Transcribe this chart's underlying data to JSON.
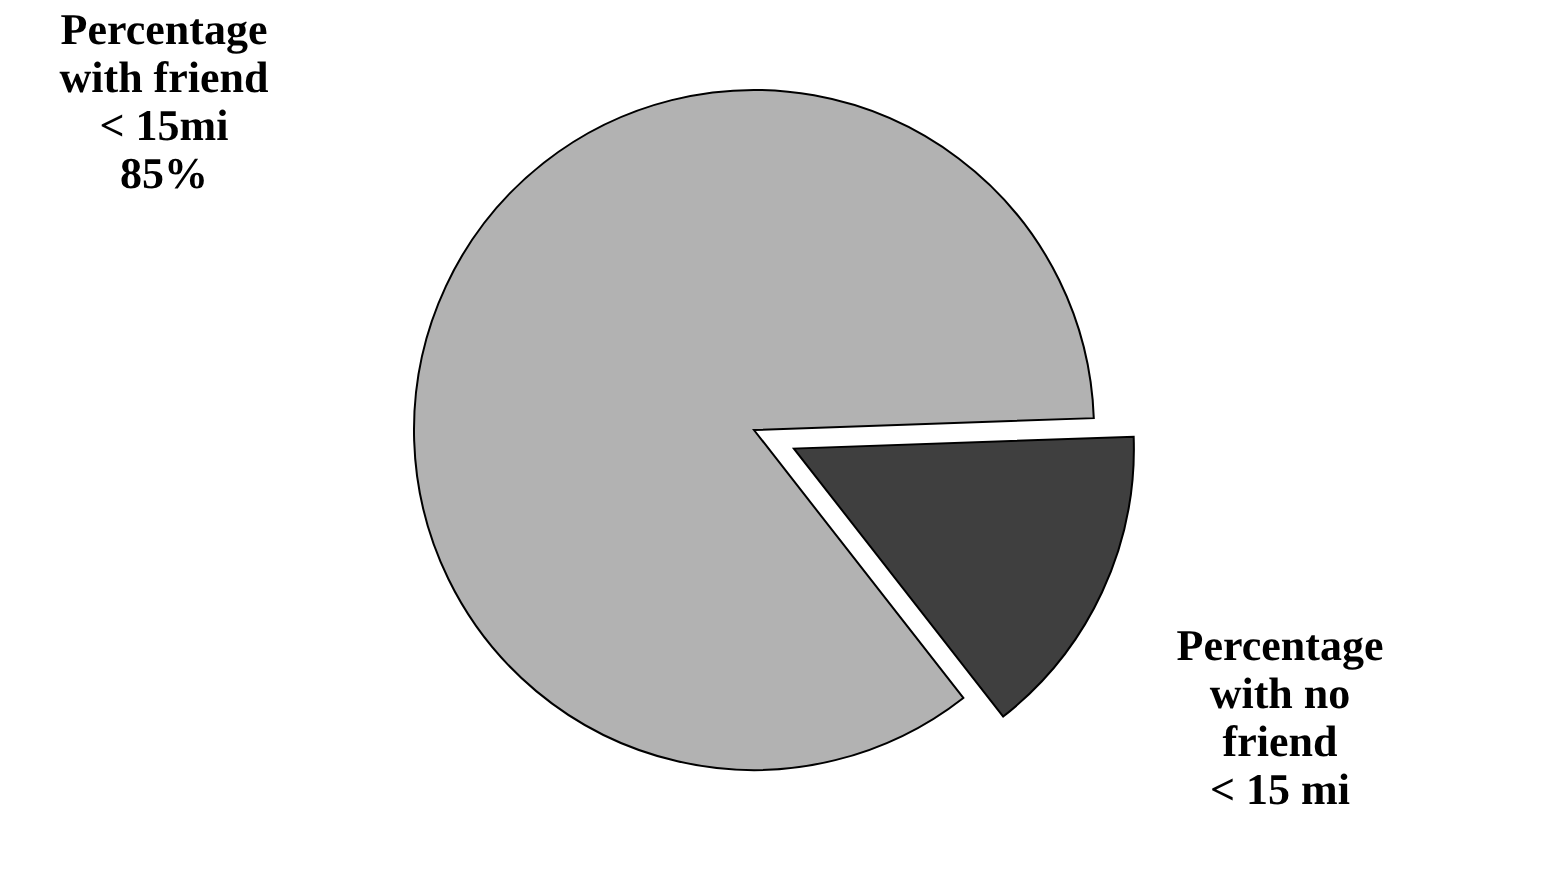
{
  "chart_data": {
    "type": "pie",
    "categories": [
      "Percentage with friend < 15mi",
      "Percentage with no friend < 15 mi"
    ],
    "values": [
      85,
      15
    ],
    "colors": [
      "#b2b2b2",
      "#3f3f3f"
    ],
    "value_labels": [
      "85%",
      null
    ]
  }
}
